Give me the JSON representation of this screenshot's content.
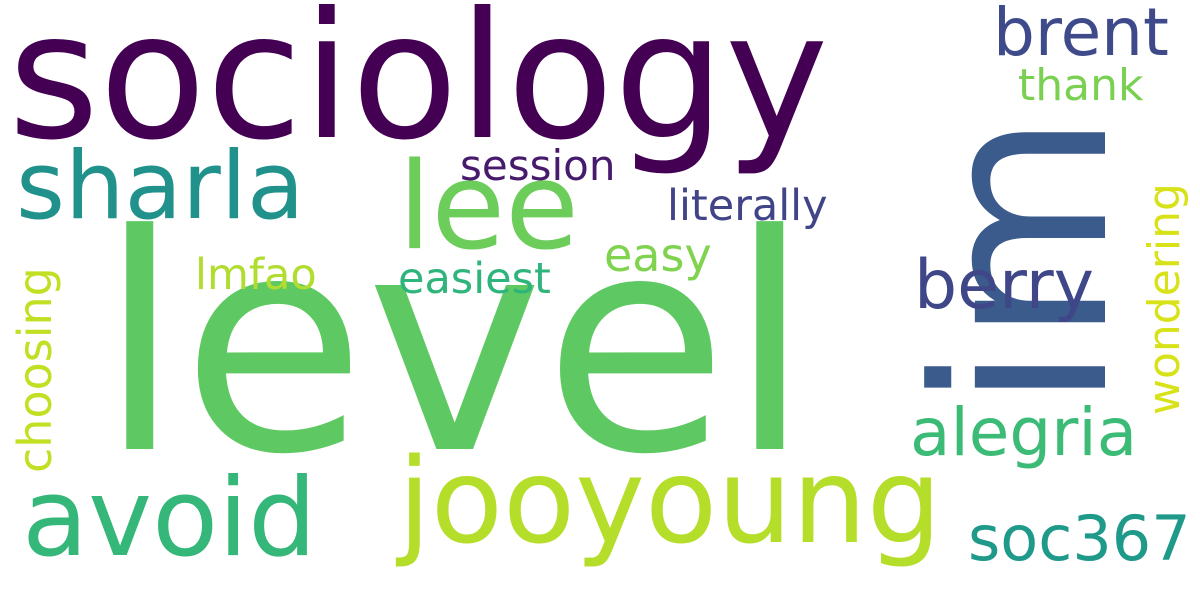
{
  "words": [
    {
      "text": "sociology",
      "color": "#440154"
    },
    {
      "text": "level",
      "color": "#5ec962"
    },
    {
      "text": "im",
      "color": "#3b5b8c"
    },
    {
      "text": "jooyoung",
      "color": "#b5de2b"
    },
    {
      "text": "avoid",
      "color": "#35b779"
    },
    {
      "text": "sharla",
      "color": "#21918c"
    },
    {
      "text": "lee",
      "color": "#6ccd5a"
    },
    {
      "text": "brent",
      "color": "#3e4a89"
    },
    {
      "text": "berry",
      "color": "#3f4788"
    },
    {
      "text": "alegria",
      "color": "#3bbb75"
    },
    {
      "text": "soc367",
      "color": "#1f9a8a"
    },
    {
      "text": "thank",
      "color": "#7ad151"
    },
    {
      "text": "session",
      "color": "#481a6c"
    },
    {
      "text": "literally",
      "color": "#414487"
    },
    {
      "text": "easy",
      "color": "#7fd34e"
    },
    {
      "text": "easiest",
      "color": "#2fb47c"
    },
    {
      "text": "lmfao",
      "color": "#b0dd2f"
    },
    {
      "text": "wondering",
      "color": "#d8e219"
    },
    {
      "text": "choosing",
      "color": "#c2df23"
    }
  ]
}
